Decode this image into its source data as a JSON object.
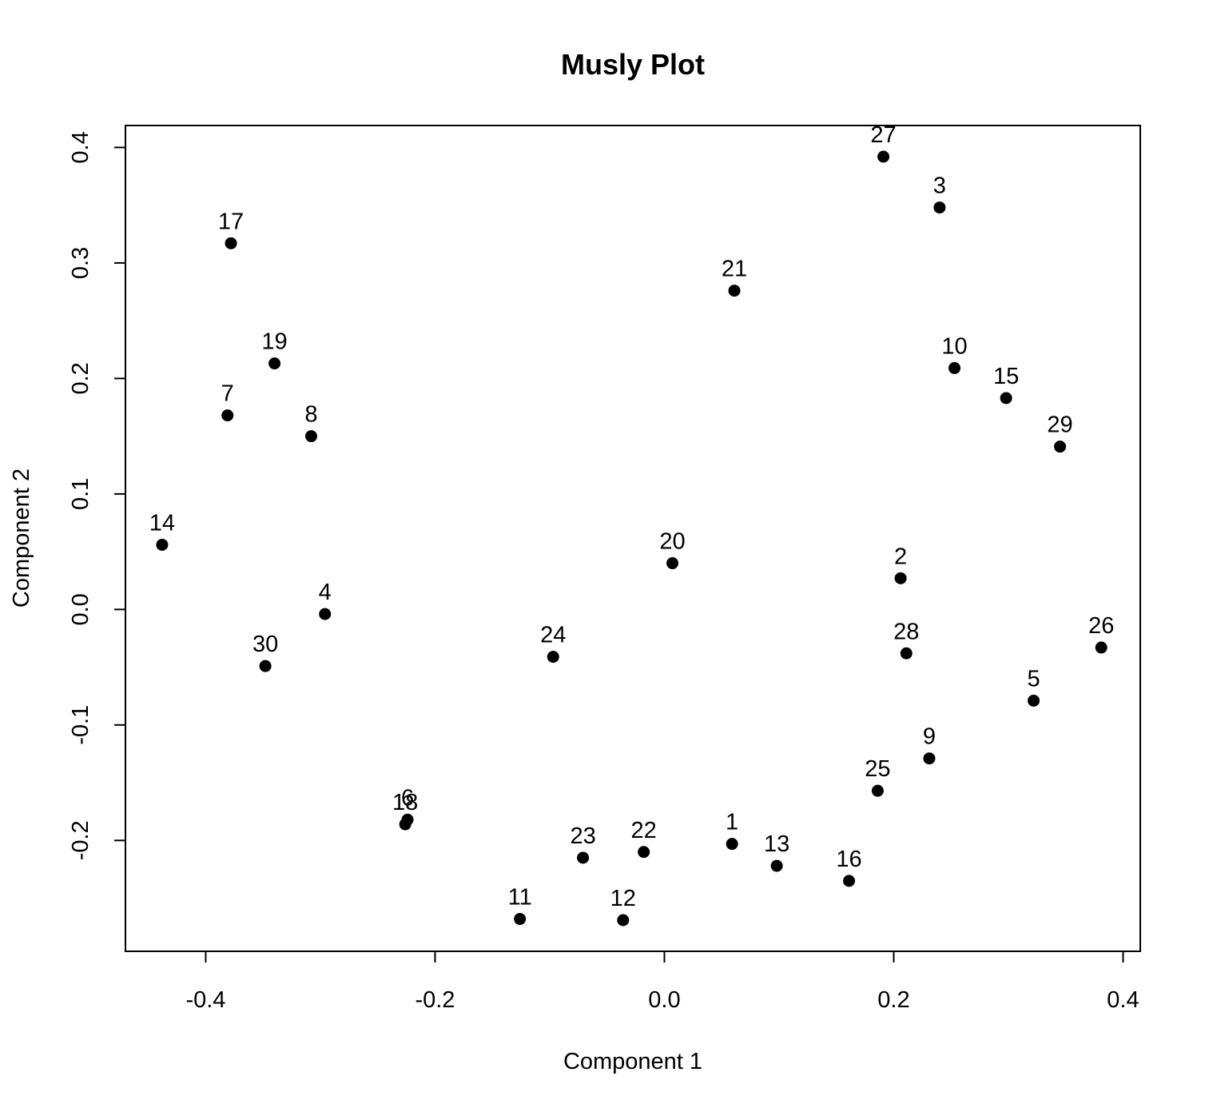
{
  "chart_data": {
    "type": "scatter",
    "title": "Musly Plot",
    "xlabel": "Component 1",
    "ylabel": "Component 2",
    "xlim": [
      -0.47,
      0.415
    ],
    "ylim": [
      -0.296,
      0.419
    ],
    "xticks": [
      -0.4,
      -0.2,
      0.0,
      0.2,
      0.4
    ],
    "xtick_labels": [
      "-0.4",
      "-0.2",
      "0.0",
      "0.2",
      "0.4"
    ],
    "yticks": [
      -0.2,
      -0.1,
      0.0,
      0.1,
      0.2,
      0.3,
      0.4
    ],
    "ytick_labels": [
      "-0.2",
      "-0.1",
      "0.0",
      "0.1",
      "0.2",
      "0.3",
      "0.4"
    ],
    "grid": false,
    "marker_color": "#000000",
    "points": [
      {
        "label": "1",
        "x": 0.059,
        "y": -0.203
      },
      {
        "label": "2",
        "x": 0.206,
        "y": 0.027
      },
      {
        "label": "3",
        "x": 0.24,
        "y": 0.348
      },
      {
        "label": "4",
        "x": -0.296,
        "y": -0.004
      },
      {
        "label": "5",
        "x": 0.322,
        "y": -0.079
      },
      {
        "label": "6",
        "x": -0.224,
        "y": -0.182
      },
      {
        "label": "7",
        "x": -0.381,
        "y": 0.168
      },
      {
        "label": "8",
        "x": -0.308,
        "y": 0.15
      },
      {
        "label": "9",
        "x": 0.231,
        "y": -0.129
      },
      {
        "label": "10",
        "x": 0.253,
        "y": 0.209
      },
      {
        "label": "11",
        "x": -0.126,
        "y": -0.268
      },
      {
        "label": "12",
        "x": -0.036,
        "y": -0.269
      },
      {
        "label": "13",
        "x": 0.098,
        "y": -0.222
      },
      {
        "label": "14",
        "x": -0.438,
        "y": 0.056
      },
      {
        "label": "15",
        "x": 0.298,
        "y": 0.183
      },
      {
        "label": "16",
        "x": 0.161,
        "y": -0.235
      },
      {
        "label": "17",
        "x": -0.378,
        "y": 0.317
      },
      {
        "label": "18",
        "x": -0.226,
        "y": -0.186
      },
      {
        "label": "19",
        "x": -0.34,
        "y": 0.213
      },
      {
        "label": "20",
        "x": 0.007,
        "y": 0.04
      },
      {
        "label": "21",
        "x": 0.061,
        "y": 0.276
      },
      {
        "label": "22",
        "x": -0.018,
        "y": -0.21
      },
      {
        "label": "23",
        "x": -0.071,
        "y": -0.215
      },
      {
        "label": "24",
        "x": -0.097,
        "y": -0.041
      },
      {
        "label": "25",
        "x": 0.186,
        "y": -0.157
      },
      {
        "label": "26",
        "x": 0.381,
        "y": -0.033
      },
      {
        "label": "27",
        "x": 0.191,
        "y": 0.392
      },
      {
        "label": "28",
        "x": 0.211,
        "y": -0.038
      },
      {
        "label": "29",
        "x": 0.345,
        "y": 0.141
      },
      {
        "label": "30",
        "x": -0.348,
        "y": -0.049
      }
    ]
  }
}
